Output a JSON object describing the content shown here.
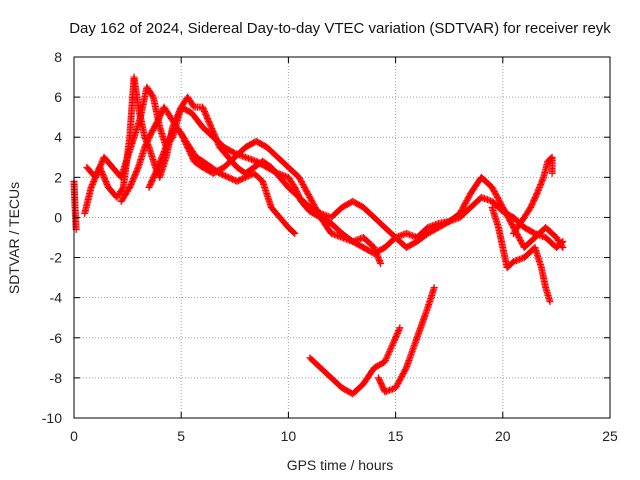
{
  "chart_data": {
    "type": "scatter",
    "title": "Day 162 of 2024, Sidereal Day-to-day VTEC variation (SDTVAR) for receiver reyk",
    "xlabel": "GPS time / hours",
    "ylabel": "SDTVAR / TECUs",
    "xlim": [
      0,
      25
    ],
    "ylim": [
      -10,
      8
    ],
    "xticks": [
      0,
      5,
      10,
      15,
      20,
      25
    ],
    "yticks": [
      -10,
      -8,
      -6,
      -4,
      -2,
      0,
      2,
      4,
      6,
      8
    ],
    "grid": true,
    "marker": "+",
    "color": "#ff0000",
    "series": [
      {
        "name": "track-1",
        "points": [
          [
            0.0,
            1.8
          ],
          [
            0.05,
            0.5
          ],
          [
            0.1,
            -0.6
          ]
        ]
      },
      {
        "name": "track-2",
        "points": [
          [
            0.5,
            0.2
          ],
          [
            0.8,
            1.5
          ],
          [
            1.2,
            2.5
          ],
          [
            1.6,
            1.5
          ],
          [
            2.0,
            1.0
          ],
          [
            2.3,
            1.5
          ],
          [
            2.6,
            4.0
          ],
          [
            2.8,
            7.0
          ],
          [
            3.0,
            5.5
          ],
          [
            3.3,
            4.0
          ],
          [
            3.5,
            3.5
          ],
          [
            3.8,
            2.5
          ],
          [
            4.0,
            2.0
          ],
          [
            4.3,
            3.0
          ],
          [
            4.6,
            4.5
          ],
          [
            5.0,
            5.5
          ],
          [
            5.5,
            5.2
          ],
          [
            6.0,
            4.5
          ],
          [
            6.5,
            4.0
          ],
          [
            7.0,
            3.5
          ],
          [
            7.5,
            3.2
          ],
          [
            8.0,
            3.0
          ],
          [
            8.5,
            2.8
          ],
          [
            9.0,
            2.5
          ],
          [
            9.5,
            2.2
          ],
          [
            10.0,
            2.0
          ],
          [
            10.3,
            1.5
          ],
          [
            10.6,
            0.8
          ],
          [
            11.0,
            0.3
          ],
          [
            11.5,
            0.0
          ],
          [
            12.0,
            -0.3
          ],
          [
            12.5,
            -0.8
          ],
          [
            13.0,
            -1.2
          ],
          [
            13.5,
            -1.5
          ],
          [
            14.0,
            -1.8
          ],
          [
            14.5,
            -1.5
          ],
          [
            15.0,
            -1.0
          ],
          [
            15.5,
            -0.8
          ],
          [
            16.0,
            -1.0
          ],
          [
            16.5,
            -0.5
          ],
          [
            17.0,
            -0.3
          ],
          [
            17.5,
            -0.2
          ],
          [
            18.0,
            0.0
          ],
          [
            18.5,
            0.5
          ],
          [
            19.0,
            1.0
          ],
          [
            19.5,
            0.8
          ],
          [
            20.0,
            0.3
          ],
          [
            20.5,
            0.0
          ],
          [
            21.0,
            -0.5
          ],
          [
            21.5,
            -0.8
          ],
          [
            22.0,
            -1.0
          ],
          [
            22.5,
            -1.5
          ],
          [
            22.8,
            -1.2
          ]
        ]
      },
      {
        "name": "track-3",
        "points": [
          [
            0.6,
            2.5
          ],
          [
            1.0,
            2.0
          ],
          [
            1.4,
            3.0
          ],
          [
            1.8,
            2.5
          ],
          [
            2.2,
            2.0
          ],
          [
            2.5,
            3.0
          ],
          [
            2.8,
            4.0
          ],
          [
            3.1,
            5.0
          ],
          [
            3.4,
            6.5
          ],
          [
            3.7,
            6.0
          ],
          [
            4.0,
            4.5
          ],
          [
            4.3,
            3.5
          ],
          [
            4.6,
            4.0
          ],
          [
            5.0,
            5.5
          ],
          [
            5.3,
            6.0
          ],
          [
            5.6,
            5.5
          ],
          [
            6.0,
            5.5
          ],
          [
            6.4,
            4.5
          ],
          [
            6.8,
            3.5
          ],
          [
            7.2,
            3.0
          ],
          [
            7.6,
            2.5
          ],
          [
            8.0,
            2.2
          ],
          [
            8.4,
            2.5
          ],
          [
            8.8,
            2.8
          ],
          [
            9.2,
            2.5
          ],
          [
            9.6,
            2.0
          ],
          [
            10.0,
            1.5
          ],
          [
            10.5,
            1.0
          ],
          [
            11.0,
            0.5
          ],
          [
            11.5,
            0.2
          ],
          [
            12.0,
            0.0
          ],
          [
            12.5,
            0.5
          ],
          [
            13.0,
            0.8
          ],
          [
            13.5,
            0.5
          ],
          [
            14.0,
            0.0
          ],
          [
            14.5,
            -0.5
          ],
          [
            15.0,
            -1.0
          ],
          [
            15.5,
            -1.5
          ],
          [
            16.0,
            -1.2
          ],
          [
            16.5,
            -0.8
          ],
          [
            17.0,
            -0.5
          ],
          [
            17.5,
            -0.2
          ],
          [
            18.0,
            0.2
          ],
          [
            18.5,
            1.2
          ],
          [
            19.0,
            2.0
          ],
          [
            19.5,
            1.5
          ],
          [
            20.0,
            0.5
          ],
          [
            20.5,
            -0.5
          ],
          [
            21.0,
            -1.5
          ],
          [
            21.5,
            -1.0
          ],
          [
            22.0,
            -0.5
          ],
          [
            22.5,
            -1.0
          ],
          [
            22.8,
            -1.5
          ]
        ]
      },
      {
        "name": "track-4",
        "points": [
          [
            2.2,
            0.8
          ],
          [
            2.6,
            1.5
          ],
          [
            3.0,
            2.5
          ],
          [
            3.3,
            3.5
          ],
          [
            3.6,
            4.2
          ],
          [
            3.9,
            4.8
          ],
          [
            4.2,
            5.5
          ],
          [
            4.5,
            5.0
          ],
          [
            4.8,
            4.5
          ],
          [
            5.1,
            4.0
          ],
          [
            5.4,
            3.5
          ],
          [
            5.7,
            3.0
          ],
          [
            6.0,
            2.8
          ],
          [
            6.4,
            2.5
          ],
          [
            6.8,
            2.2
          ],
          [
            7.2,
            2.0
          ],
          [
            7.6,
            1.8
          ],
          [
            8.0,
            2.0
          ],
          [
            8.4,
            2.2
          ],
          [
            8.8,
            1.8
          ],
          [
            9.2,
            0.5
          ],
          [
            9.6,
            0.0
          ],
          [
            10.0,
            -0.5
          ],
          [
            10.3,
            -0.8
          ]
        ]
      },
      {
        "name": "track-5",
        "points": [
          [
            3.5,
            1.5
          ],
          [
            3.8,
            2.2
          ],
          [
            4.1,
            3.0
          ],
          [
            4.4,
            3.8
          ],
          [
            4.7,
            4.5
          ],
          [
            5.0,
            4.2
          ],
          [
            5.3,
            3.5
          ],
          [
            5.6,
            2.8
          ],
          [
            6.0,
            2.5
          ],
          [
            6.5,
            2.2
          ],
          [
            7.0,
            2.5
          ],
          [
            7.5,
            3.0
          ],
          [
            8.0,
            3.5
          ],
          [
            8.5,
            3.8
          ],
          [
            9.0,
            3.5
          ],
          [
            9.5,
            3.0
          ],
          [
            10.0,
            2.5
          ],
          [
            10.5,
            2.0
          ],
          [
            11.0,
            1.0
          ],
          [
            11.5,
            0.0
          ],
          [
            12.0,
            -0.8
          ],
          [
            12.5,
            -1.0
          ],
          [
            13.0,
            -1.2
          ],
          [
            13.5,
            -1.0
          ],
          [
            14.0,
            -1.5
          ],
          [
            14.3,
            -2.3
          ]
        ]
      },
      {
        "name": "track-6",
        "points": [
          [
            11.0,
            -7.0
          ],
          [
            11.5,
            -7.5
          ],
          [
            12.0,
            -8.0
          ],
          [
            12.5,
            -8.5
          ],
          [
            13.0,
            -8.8
          ],
          [
            13.5,
            -8.3
          ],
          [
            14.0,
            -7.5
          ],
          [
            14.5,
            -7.2
          ],
          [
            15.0,
            -6.0
          ],
          [
            15.2,
            -5.5
          ]
        ]
      },
      {
        "name": "track-7",
        "points": [
          [
            14.2,
            -8.0
          ],
          [
            14.5,
            -8.7
          ],
          [
            15.0,
            -8.5
          ],
          [
            15.5,
            -7.5
          ],
          [
            16.0,
            -6.0
          ],
          [
            16.5,
            -4.5
          ],
          [
            16.8,
            -3.5
          ]
        ]
      },
      {
        "name": "track-8",
        "points": [
          [
            19.5,
            0.5
          ],
          [
            19.8,
            -0.5
          ],
          [
            20.0,
            -1.5
          ],
          [
            20.2,
            -2.5
          ],
          [
            20.5,
            -2.2
          ],
          [
            21.0,
            -2.0
          ],
          [
            21.5,
            -1.5
          ],
          [
            21.8,
            -2.5
          ],
          [
            22.0,
            -3.5
          ],
          [
            22.2,
            -4.2
          ]
        ]
      },
      {
        "name": "track-9",
        "points": [
          [
            20.5,
            -0.8
          ],
          [
            20.8,
            -0.3
          ],
          [
            21.0,
            0.0
          ],
          [
            21.3,
            0.5
          ],
          [
            21.6,
            1.2
          ],
          [
            21.9,
            2.0
          ],
          [
            22.1,
            2.8
          ],
          [
            22.3,
            3.0
          ],
          [
            22.3,
            2.2
          ]
        ]
      }
    ]
  }
}
